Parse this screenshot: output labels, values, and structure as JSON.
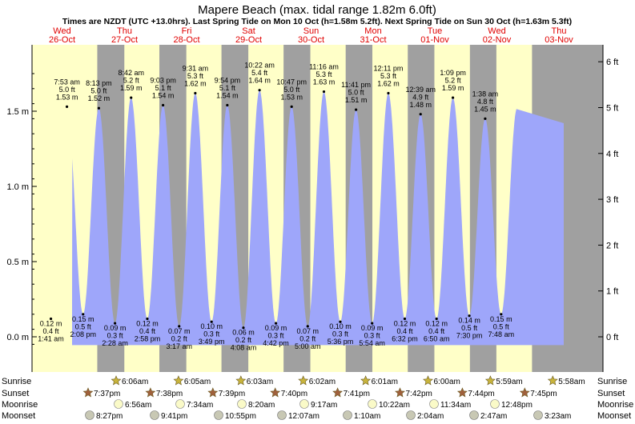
{
  "header": {
    "title": "Mapere Beach (max. tidal range 1.82m 6.0ft)",
    "subtitle": "Times are NZDT (UTC +13.0hrs). Last Spring Tide on Mon 10 Oct (h=1.58m 5.2ft). Next Spring Tide on Sun 30 Oct (h=1.63m 5.3ft)"
  },
  "colors": {
    "night": "#a0a0a0",
    "day": "#ffffc8",
    "tide_fill": "#9ea6fa",
    "day_label": "#e00000",
    "date_label": "#e00000",
    "sun_icon": "#c8b43c",
    "sunset_icon": "#a0603c",
    "moonrise_icon": "#fafac8",
    "moonset_icon": "#c8c8b4"
  },
  "chart_data": {
    "type": "area",
    "ylabel_left": "m",
    "ylabel_right": "ft",
    "ylim_m": [
      -0.1,
      1.82
    ],
    "yticks_left": [
      {
        "v": 0.0,
        "label": "0.0 m"
      },
      {
        "v": 0.5,
        "label": "0.5 m"
      },
      {
        "v": 1.0,
        "label": "1.0 m"
      },
      {
        "v": 1.5,
        "label": "1.5 m"
      }
    ],
    "yticks_right": [
      {
        "ft": 0,
        "label": "0 ft"
      },
      {
        "ft": 1,
        "label": "1 ft"
      },
      {
        "ft": 2,
        "label": "2 ft"
      },
      {
        "ft": 3,
        "label": "3 ft"
      },
      {
        "ft": 4,
        "label": "4 ft"
      },
      {
        "ft": 5,
        "label": "5 ft"
      },
      {
        "ft": 6,
        "label": "6 ft"
      }
    ],
    "days": [
      {
        "day": "Wed",
        "date": "26-Oct"
      },
      {
        "day": "Thu",
        "date": "27-Oct"
      },
      {
        "day": "Fri",
        "date": "28-Oct"
      },
      {
        "day": "Sat",
        "date": "29-Oct"
      },
      {
        "day": "Sun",
        "date": "30-Oct"
      },
      {
        "day": "Mon",
        "date": "31-Oct"
      },
      {
        "day": "Tue",
        "date": "01-Nov"
      },
      {
        "day": "Wed",
        "date": "02-Nov"
      },
      {
        "day": "Thu",
        "date": "03-Nov"
      }
    ],
    "tides": [
      {
        "type": "low",
        "time": "1:41 am",
        "day": 0,
        "m": 0.12,
        "ft": "0.4 ft",
        "mlabel": "0.12 m"
      },
      {
        "type": "high",
        "time": "7:53 am",
        "day": 0,
        "m": 1.53,
        "ft": "5.0 ft",
        "mlabel": "1.53 m"
      },
      {
        "type": "low",
        "time": "2:08 pm",
        "day": 0,
        "m": 0.15,
        "ft": "0.5 ft",
        "mlabel": "0.15 m"
      },
      {
        "type": "high",
        "time": "8:13 pm",
        "day": 0,
        "m": 1.52,
        "ft": "5.0 ft",
        "mlabel": "1.52 m"
      },
      {
        "type": "low",
        "time": "2:28 am",
        "day": 1,
        "m": 0.09,
        "ft": "0.3 ft",
        "mlabel": "0.09 m"
      },
      {
        "type": "high",
        "time": "8:42 am",
        "day": 1,
        "m": 1.59,
        "ft": "5.2 ft",
        "mlabel": "1.59 m"
      },
      {
        "type": "low",
        "time": "2:58 pm",
        "day": 1,
        "m": 0.12,
        "ft": "0.4 ft",
        "mlabel": "0.12 m"
      },
      {
        "type": "high",
        "time": "9:03 pm",
        "day": 1,
        "m": 1.54,
        "ft": "5.1 ft",
        "mlabel": "1.54 m"
      },
      {
        "type": "low",
        "time": "3:17 am",
        "day": 2,
        "m": 0.07,
        "ft": "0.2 ft",
        "mlabel": "0.07 m"
      },
      {
        "type": "high",
        "time": "9:31 am",
        "day": 2,
        "m": 1.62,
        "ft": "5.3 ft",
        "mlabel": "1.62 m"
      },
      {
        "type": "low",
        "time": "3:49 pm",
        "day": 2,
        "m": 0.1,
        "ft": "0.3 ft",
        "mlabel": "0.10 m"
      },
      {
        "type": "high",
        "time": "9:54 pm",
        "day": 2,
        "m": 1.54,
        "ft": "5.1 ft",
        "mlabel": "1.54 m"
      },
      {
        "type": "low",
        "time": "4:08 am",
        "day": 3,
        "m": 0.06,
        "ft": "0.2 ft",
        "mlabel": "0.06 m"
      },
      {
        "type": "high",
        "time": "10:22 am",
        "day": 3,
        "m": 1.64,
        "ft": "5.4 ft",
        "mlabel": "1.64 m"
      },
      {
        "type": "low",
        "time": "4:42 pm",
        "day": 3,
        "m": 0.09,
        "ft": "0.3 ft",
        "mlabel": "0.09 m"
      },
      {
        "type": "high",
        "time": "10:47 pm",
        "day": 3,
        "m": 1.53,
        "ft": "5.0 ft",
        "mlabel": "1.53 m"
      },
      {
        "type": "low",
        "time": "5:00 am",
        "day": 4,
        "m": 0.07,
        "ft": "0.2 ft",
        "mlabel": "0.07 m"
      },
      {
        "type": "high",
        "time": "11:16 am",
        "day": 4,
        "m": 1.63,
        "ft": "5.3 ft",
        "mlabel": "1.63 m"
      },
      {
        "type": "low",
        "time": "5:36 pm",
        "day": 4,
        "m": 0.1,
        "ft": "0.3 ft",
        "mlabel": "0.10 m"
      },
      {
        "type": "high",
        "time": "11:41 pm",
        "day": 4,
        "m": 1.51,
        "ft": "5.0 ft",
        "mlabel": "1.51 m"
      },
      {
        "type": "low",
        "time": "5:54 am",
        "day": 5,
        "m": 0.09,
        "ft": "0.3 ft",
        "mlabel": "0.09 m"
      },
      {
        "type": "high",
        "time": "12:11 pm",
        "day": 5,
        "m": 1.62,
        "ft": "5.3 ft",
        "mlabel": "1.62 m"
      },
      {
        "type": "low",
        "time": "6:32 pm",
        "day": 5,
        "m": 0.12,
        "ft": "0.4 ft",
        "mlabel": "0.12 m"
      },
      {
        "type": "high",
        "time": "12:39 am",
        "day": 6,
        "m": 1.48,
        "ft": "4.9 ft",
        "mlabel": "1.48 m"
      },
      {
        "type": "low",
        "time": "6:50 am",
        "day": 6,
        "m": 0.12,
        "ft": "0.4 ft",
        "mlabel": "0.12 m"
      },
      {
        "type": "high",
        "time": "1:09 pm",
        "day": 6,
        "m": 1.59,
        "ft": "5.2 ft",
        "mlabel": "1.59 m"
      },
      {
        "type": "low",
        "time": "7:30 pm",
        "day": 6,
        "m": 0.14,
        "ft": "0.5 ft",
        "mlabel": "0.14 m"
      },
      {
        "type": "high",
        "time": "1:38 am",
        "day": 7,
        "m": 1.45,
        "ft": "4.8 ft",
        "mlabel": "1.45 m"
      },
      {
        "type": "low",
        "time": "7:48 am",
        "day": 7,
        "m": 0.15,
        "ft": "0.5 ft",
        "mlabel": "0.15 m"
      }
    ],
    "sun": [
      {
        "day": 0,
        "rise": "6:06am",
        "set": "7:37pm"
      },
      {
        "day": 1,
        "rise": "6:05am",
        "set": "7:38pm"
      },
      {
        "day": 2,
        "rise": "6:03am",
        "set": "7:39pm"
      },
      {
        "day": 3,
        "rise": "6:02am",
        "set": "7:40pm"
      },
      {
        "day": 4,
        "rise": "6:01am",
        "set": "7:41pm"
      },
      {
        "day": 5,
        "rise": "6:00am",
        "set": "7:42pm"
      },
      {
        "day": 6,
        "rise": "5:59am",
        "set": "7:44pm"
      },
      {
        "day": 7,
        "rise": "5:58am",
        "set": "7:45pm"
      }
    ],
    "moonrise": [
      {
        "day": 0,
        "time": "6:56am"
      },
      {
        "day": 1,
        "time": "7:34am"
      },
      {
        "day": 2,
        "time": "8:20am"
      },
      {
        "day": 3,
        "time": "9:17am"
      },
      {
        "day": 4,
        "time": "10:22am"
      },
      {
        "day": 5,
        "time": "11:34am"
      },
      {
        "day": 6,
        "time": "12:48pm"
      }
    ],
    "moonset": [
      {
        "day": -1,
        "time": "8:27pm"
      },
      {
        "day": 0,
        "time": "9:41pm"
      },
      {
        "day": 1,
        "time": "10:55pm"
      },
      {
        "day": 3,
        "time": "12:07am"
      },
      {
        "day": 4,
        "time": "1:10am"
      },
      {
        "day": 5,
        "time": "2:04am"
      },
      {
        "day": 6,
        "time": "2:47am"
      },
      {
        "day": 7,
        "time": "3:23am"
      }
    ],
    "row_labels": {
      "sunrise": "Sunrise",
      "sunset": "Sunset",
      "moonrise": "Moonrise",
      "moonset": "Moonset"
    }
  }
}
